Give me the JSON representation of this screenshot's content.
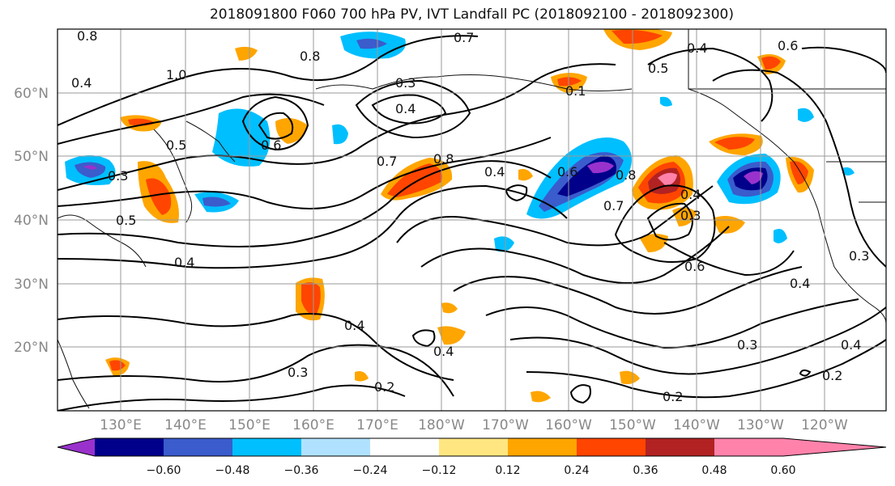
{
  "title": "2018091800 F060 700 hPa PV, IVT Landfall PC (2018092100 - 2018092300)",
  "map": {
    "lat_labels": [
      "60°N",
      "50°N",
      "40°N",
      "30°N",
      "20°N"
    ],
    "lon_labels": [
      "130°E",
      "140°E",
      "150°E",
      "160°E",
      "170°E",
      "180°W",
      "170°W",
      "160°W",
      "150°W",
      "140°W",
      "130°W",
      "120°W"
    ],
    "contour_labels": [
      "0.8",
      "0.7",
      "0.4",
      "0.6",
      "1.0",
      "0.4",
      "0.8",
      "0.3",
      "0.5",
      "0.4",
      "0.1",
      "0.5",
      "0.6",
      "0.3",
      "0.7",
      "0.8",
      "0.4",
      "0.6",
      "0.8",
      "0.7",
      "0.4",
      "0.3",
      "0.5",
      "0.4",
      "0.6",
      "0.3",
      "0.4",
      "0.4",
      "0.3",
      "0.2",
      "0.4",
      "0.3",
      "0.2",
      "0.4",
      "0.2"
    ]
  },
  "colorbar": {
    "ticks": [
      "−0.60",
      "−0.48",
      "−0.36",
      "−0.24",
      "−0.12",
      "0.12",
      "0.24",
      "0.36",
      "0.48",
      "0.60"
    ],
    "colors": [
      "#9932cc",
      "#00008b",
      "#3a5ccc",
      "#00bfff",
      "#b0e2ff",
      "#ffffff",
      "#ffe680",
      "#ffa500",
      "#ff4500",
      "#b22222",
      "#ff82ab"
    ]
  }
}
